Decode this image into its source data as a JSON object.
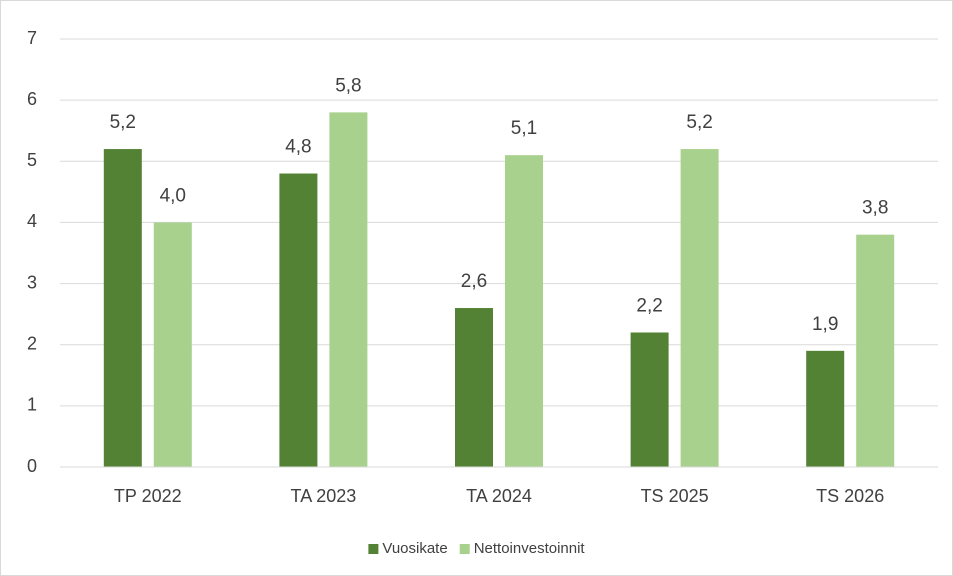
{
  "chart_data": {
    "type": "bar",
    "categories": [
      "TP 2022",
      "TA 2023",
      "TA 2024",
      "TS 2025",
      "TS 2026"
    ],
    "series": [
      {
        "name": "Vuosikate",
        "color": "#548235",
        "values": [
          5.2,
          4.8,
          2.6,
          2.2,
          1.9
        ],
        "value_labels": [
          "5,2",
          "4,8",
          "2,6",
          "2,2",
          "1,9"
        ]
      },
      {
        "name": "Nettoinvestoinnit",
        "color": "#a9d18e",
        "values": [
          4.0,
          5.8,
          5.1,
          5.2,
          3.8
        ],
        "value_labels": [
          "4,0",
          "5,8",
          "5,1",
          "5,2",
          "3,8"
        ]
      }
    ],
    "ylim": [
      0,
      7
    ],
    "yticks": [
      0,
      1,
      2,
      3,
      4,
      5,
      6,
      7
    ],
    "grid": true,
    "legend": "bottom"
  }
}
